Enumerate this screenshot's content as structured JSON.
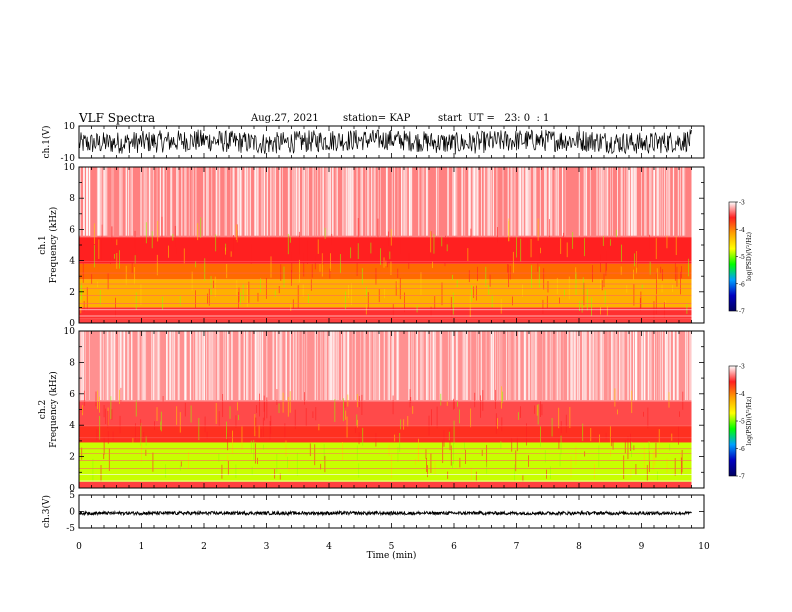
{
  "header": {
    "title": "VLF Spectra",
    "date": "Aug.27, 2021",
    "station": "station= KAP",
    "start": "start  UT =   23: 0  : 1"
  },
  "colorbar": {
    "label": "log(PSD)(V²/Hz)",
    "ticks": [
      "-3",
      "-4",
      "-5",
      "-6",
      "-7"
    ],
    "colors": [
      "#ffffff",
      "#ff2020",
      "#ffa000",
      "#ffff00",
      "#00ff00",
      "#00a0ff",
      "#0000c0",
      "#000060"
    ]
  },
  "chart_data": [
    {
      "type": "line",
      "name": "ch1-waveform",
      "ylabel": "ch.1(V)",
      "ylim": [
        -10,
        10
      ],
      "yticks": [
        "10",
        "-10"
      ],
      "xlim": [
        0,
        10
      ],
      "envelope": {
        "x": [
          0,
          1,
          2,
          3,
          4,
          5,
          6,
          7,
          8,
          9,
          9.8
        ],
        "min": [
          -8,
          -7,
          -6,
          -8,
          -6,
          -5,
          -8,
          -6,
          -6,
          -8,
          -6
        ],
        "max": [
          6,
          7,
          8,
          6,
          8,
          8,
          6,
          8,
          8,
          6,
          8
        ]
      }
    },
    {
      "type": "heatmap",
      "name": "ch1-spectrogram",
      "ylabel": "ch.1\nFrequency (kHz)",
      "ylabel_lines": [
        "ch.1",
        "Frequency (kHz)"
      ],
      "ylim": [
        0,
        10
      ],
      "yticks": [
        "0",
        "2",
        "4",
        "6",
        "8",
        "10"
      ],
      "xlim": [
        0,
        10
      ],
      "data_end_min": 9.8,
      "band_colors": [
        {
          "f_low": 0.0,
          "f_high": 0.3,
          "color": "#ff4040"
        },
        {
          "f_low": 0.3,
          "f_high": 1.0,
          "color": "#ff3030"
        },
        {
          "f_low": 1.0,
          "f_high": 2.8,
          "color": "#ffb000"
        },
        {
          "f_low": 2.8,
          "f_high": 3.8,
          "color": "#ff6a00"
        },
        {
          "f_low": 3.8,
          "f_high": 5.5,
          "color": "#ff2020"
        },
        {
          "f_low": 5.5,
          "f_high": 10.0,
          "color": "#ff8080"
        }
      ]
    },
    {
      "type": "heatmap",
      "name": "ch2-spectrogram",
      "ylabel": "ch.2\nFrequency (kHz)",
      "ylabel_lines": [
        "ch.2",
        "Frequency (kHz)"
      ],
      "ylim": [
        0,
        10
      ],
      "yticks": [
        "0",
        "2",
        "4",
        "6",
        "8",
        "10"
      ],
      "xlim": [
        0,
        10
      ],
      "data_end_min": 9.8,
      "band_colors": [
        {
          "f_low": 0.0,
          "f_high": 0.4,
          "color": "#ff4040"
        },
        {
          "f_low": 0.4,
          "f_high": 2.9,
          "color": "#c8ff00"
        },
        {
          "f_low": 2.9,
          "f_high": 4.0,
          "color": "#ff3020"
        },
        {
          "f_low": 4.0,
          "f_high": 5.5,
          "color": "#ff4a4a"
        },
        {
          "f_low": 5.5,
          "f_high": 10.0,
          "color": "#ff9090"
        }
      ]
    },
    {
      "type": "line",
      "name": "ch3-waveform",
      "ylabel": "ch.3(V)",
      "ylim": [
        -5,
        5
      ],
      "yticks": [
        "5",
        "0",
        "-5"
      ],
      "xlim": [
        0,
        10
      ],
      "xlabel": "Time (min)",
      "xticks": [
        "0",
        "1",
        "2",
        "3",
        "4",
        "5",
        "6",
        "7",
        "8",
        "9",
        "10"
      ],
      "envelope": {
        "x": [
          0,
          9.8
        ],
        "min": [
          -1.0,
          -1.0
        ],
        "max": [
          0.0,
          0.0
        ]
      }
    }
  ]
}
